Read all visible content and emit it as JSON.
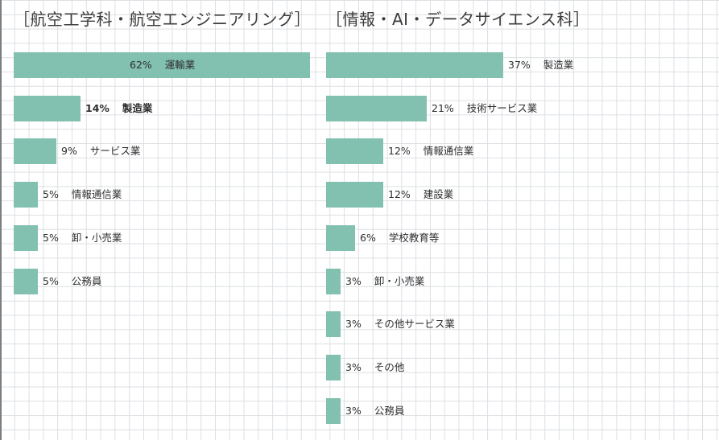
{
  "chart_data": [
    {
      "type": "bar",
      "orientation": "horizontal",
      "title": "［航空工学科・航空エンジニアリング］",
      "categories": [
        "運輸業",
        "製造業",
        "サービス業",
        "情報通信業",
        "卸・小売業",
        "公務員"
      ],
      "values": [
        62,
        14,
        9,
        5,
        5,
        5
      ],
      "labels": [
        "62%",
        "14%",
        "9%",
        "5%",
        "5%",
        "5%"
      ],
      "bold": [
        false,
        true,
        false,
        false,
        false,
        false
      ],
      "xlim": [
        0,
        62
      ],
      "grid": true,
      "bar_color": "#82c0b0"
    },
    {
      "type": "bar",
      "orientation": "horizontal",
      "title": "［情報・AI・データサイエンス科］",
      "categories": [
        "製造業",
        "技術サービス業",
        "情報通信業",
        "建設業",
        "学校教育等",
        "卸・小売業",
        "その他サービス業",
        "その他",
        "公務員"
      ],
      "values": [
        37,
        21,
        12,
        12,
        6,
        3,
        3,
        3,
        3
      ],
      "labels": [
        "37%",
        "21%",
        "12%",
        "12%",
        "6%",
        "3%",
        "3%",
        "3%",
        "3%"
      ],
      "bold": [
        false,
        false,
        false,
        false,
        false,
        false,
        false,
        false,
        false
      ],
      "xlim": [
        0,
        62
      ],
      "grid": true,
      "bar_color": "#82c0b0"
    }
  ]
}
